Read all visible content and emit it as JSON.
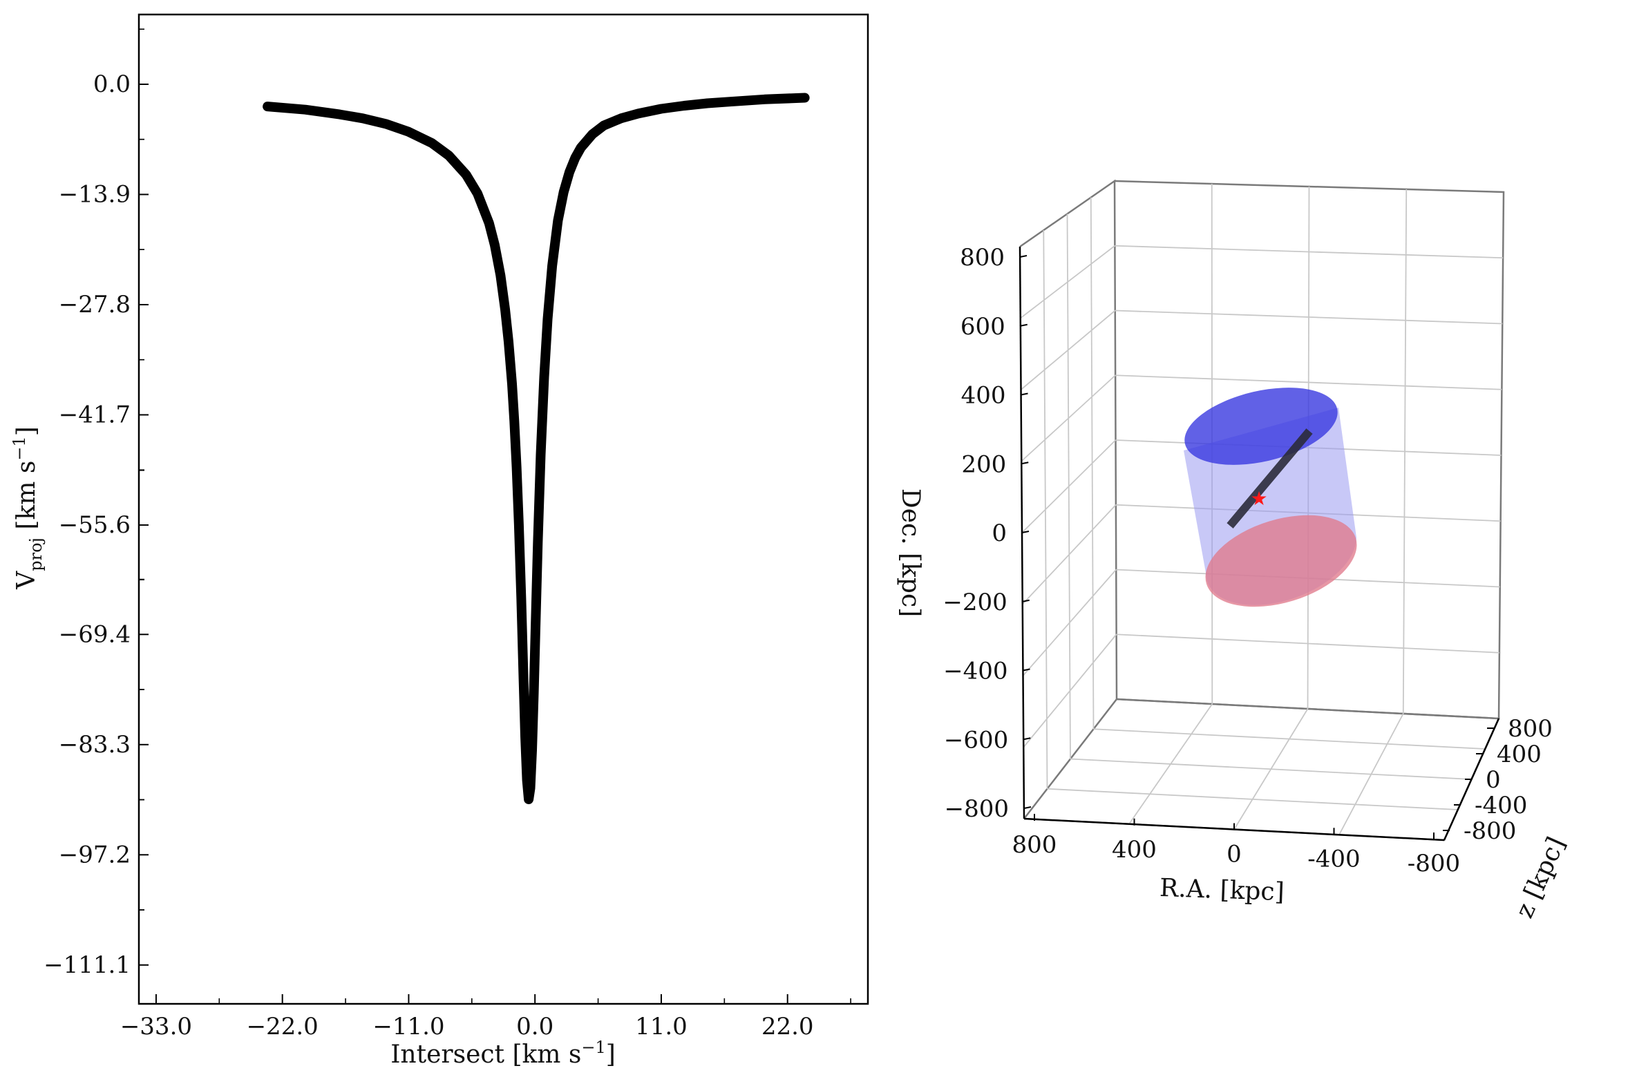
{
  "colors": {
    "curve": "#000000",
    "axes": "#000000",
    "grid3d": "#c8c8c8",
    "pane_edge": "#7a7a7a",
    "cylinder_top": "#3a3ae0",
    "cylinder_bottom": "#e07a8c",
    "cylinder_side": "#9a9af0",
    "line_of_sight": "#2b2b3a",
    "marker": "#ff1a1a"
  },
  "chart_data": [
    {
      "type": "line",
      "xlabel": "Intersect [km s^{-1}]",
      "ylabel": "V_proj [km s^{-1}]",
      "xlim": [
        -34.5,
        29.0
      ],
      "ylim": [
        -116.0,
        8.8
      ],
      "xticks": [
        -33.0,
        -22.0,
        -11.0,
        0.0,
        11.0,
        22.0
      ],
      "xtick_labels": [
        "−33.0",
        "−22.0",
        "−11.0",
        "0.0",
        "11.0",
        "22.0"
      ],
      "yticks": [
        0.0,
        -13.9,
        -27.8,
        -41.7,
        -55.6,
        -69.4,
        -83.3,
        -97.2,
        -111.1
      ],
      "ytick_labels": [
        "0.0",
        "−13.9",
        "−27.8",
        "−41.7",
        "−55.6",
        "−69.4",
        "−83.3",
        "−97.2",
        "−111.1"
      ],
      "series": [
        {
          "style": "thick black markers",
          "x": [
            -23.3,
            -20,
            -17,
            -15,
            -13,
            -11,
            -9,
            -7.5,
            -6,
            -5,
            -4,
            -3.5,
            -3,
            -2.6,
            -2.3,
            -2.0,
            -1.8,
            -1.6,
            -1.4,
            -1.2,
            -1.0,
            -0.85,
            -0.7,
            -0.55,
            -0.4,
            -0.25,
            -0.1,
            0.05,
            0.25,
            0.5,
            0.8,
            1.1,
            1.5,
            2.0,
            2.5,
            3.0,
            3.5,
            4.0,
            5.0,
            6.0,
            7.5,
            9.0,
            11,
            13,
            15,
            17,
            20,
            23.5
          ],
          "y": [
            -2.8,
            -3.2,
            -3.8,
            -4.3,
            -5.0,
            -6.0,
            -7.4,
            -9.0,
            -11.4,
            -13.8,
            -17.5,
            -20.3,
            -24.1,
            -28.4,
            -32.5,
            -37.8,
            -42.5,
            -48.3,
            -55.6,
            -64.7,
            -75.0,
            -82.4,
            -87.8,
            -90.2,
            -88.8,
            -84.0,
            -76.9,
            -68.6,
            -57.9,
            -46.7,
            -36.9,
            -29.6,
            -22.9,
            -17.2,
            -13.6,
            -11.1,
            -9.3,
            -8.0,
            -6.3,
            -5.2,
            -4.3,
            -3.7,
            -3.1,
            -2.7,
            -2.4,
            -2.2,
            -1.9,
            -1.7
          ]
        }
      ]
    },
    {
      "type": "scatter",
      "projection": "3d",
      "xlabel": "R.A. [kpc]",
      "ylabel": "z [kpc]",
      "zlabel": "Dec. [kpc]",
      "xlim": [
        800,
        -800
      ],
      "ylim": [
        -800,
        800
      ],
      "zlim": [
        -800,
        800
      ],
      "xtick_labels": [
        "800",
        "400",
        "0",
        "-400",
        "-800"
      ],
      "ytick_labels": [
        "800",
        "400",
        "0",
        "-400",
        "-800"
      ],
      "ztick_labels": [
        "800",
        "600",
        "400",
        "200",
        "0",
        "−200",
        "−400",
        "−600",
        "−800"
      ],
      "grid": true,
      "objects": [
        {
          "kind": "cylinder",
          "face_colors": [
            "blue (top)",
            "red (bottom)"
          ],
          "center": [
            0,
            0,
            0
          ]
        },
        {
          "kind": "line",
          "label": "line of sight",
          "from": [
            0,
            0,
            -100
          ],
          "to": [
            0,
            0,
            300
          ]
        },
        {
          "kind": "marker",
          "shape": "star",
          "point": [
            0,
            0,
            0
          ]
        }
      ]
    }
  ]
}
